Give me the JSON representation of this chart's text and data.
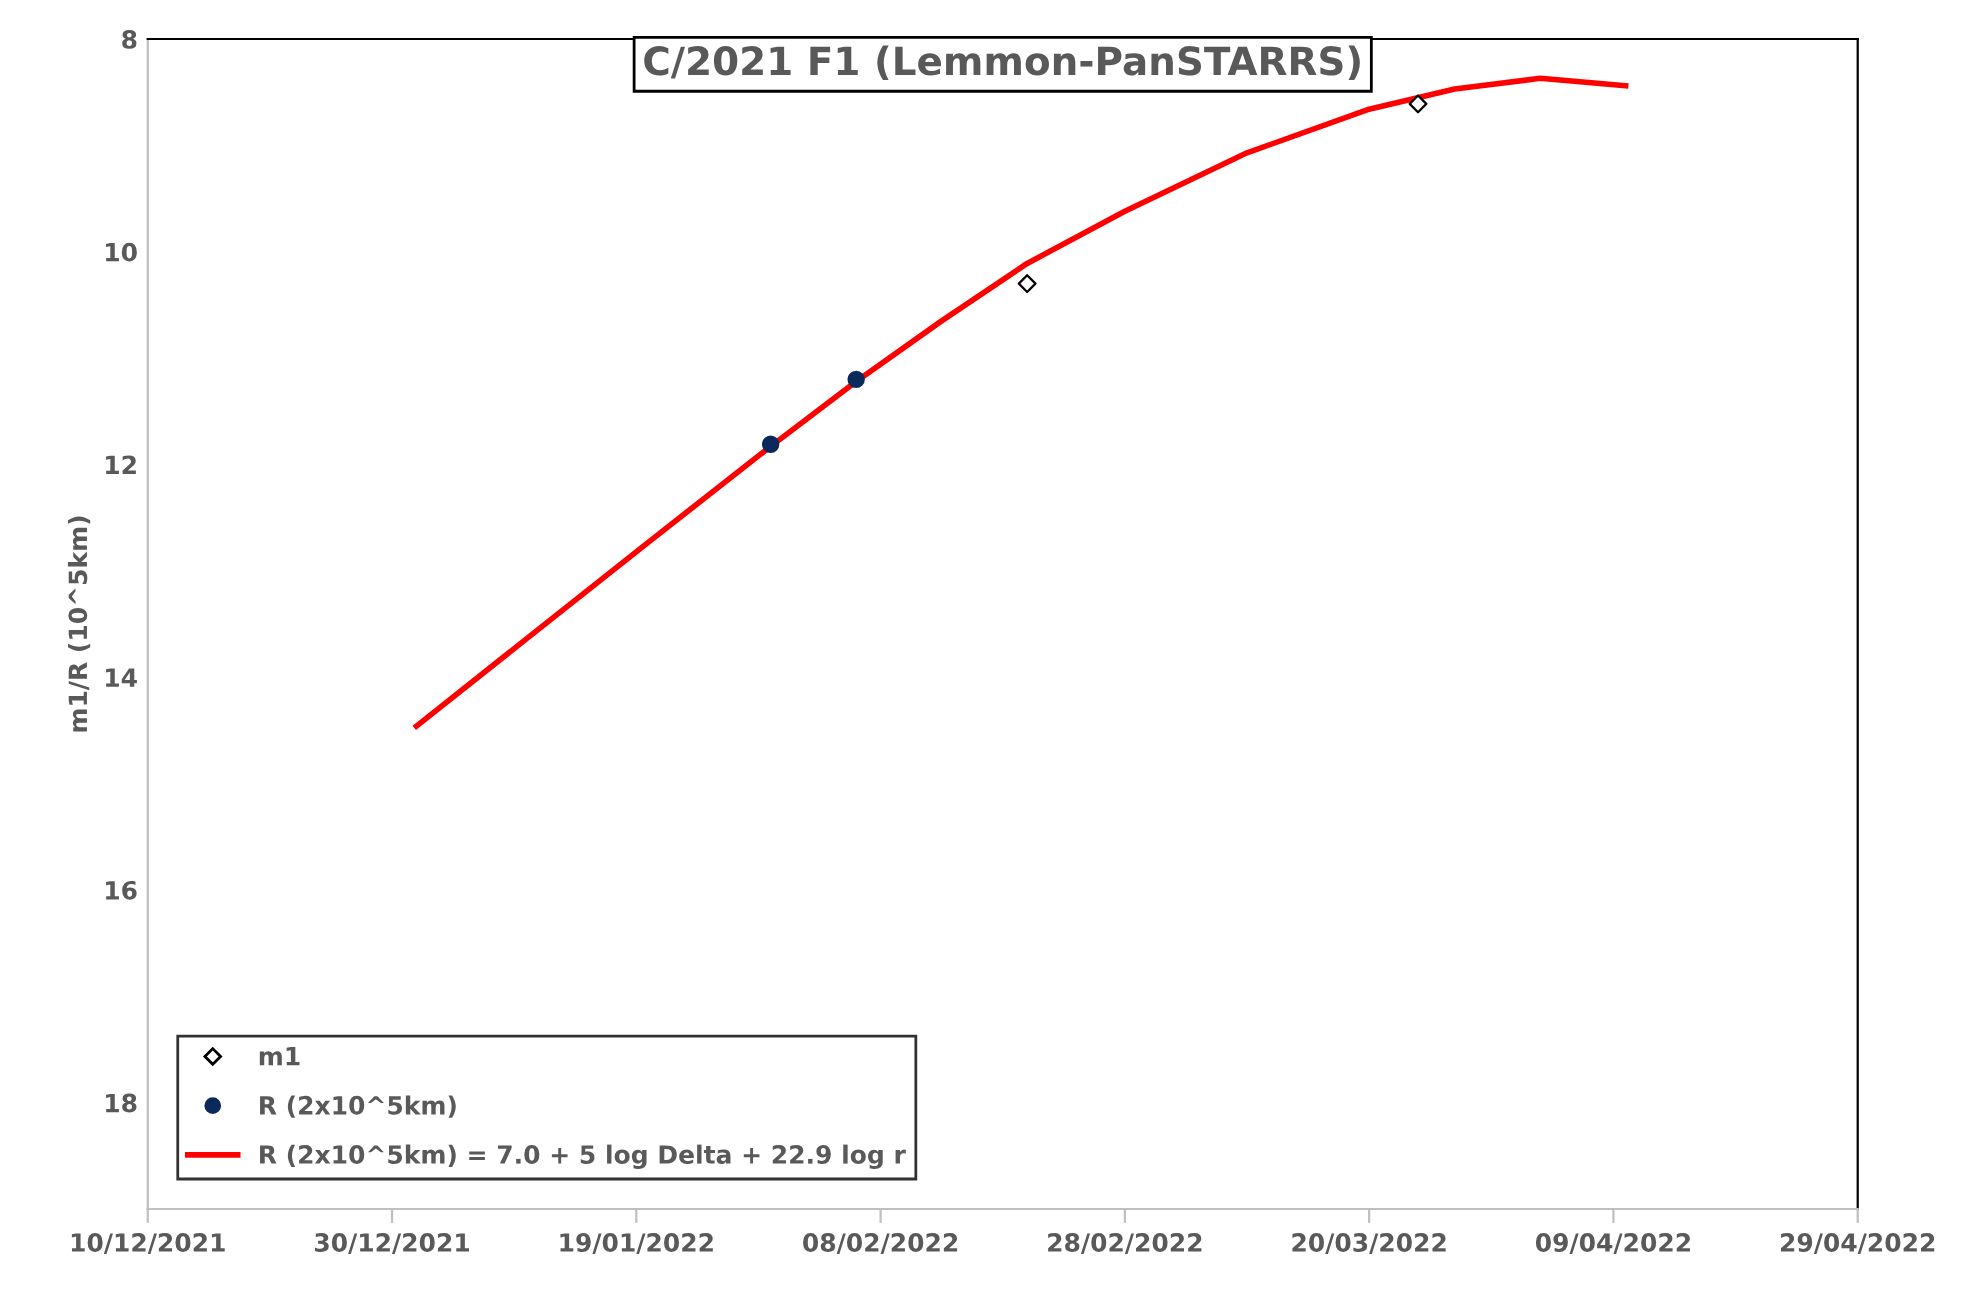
{
  "chart_data": {
    "type": "scatter",
    "title": "C/2021 F1 (Lemmon-PanSTARRS)",
    "ylabel": "m1/R (10^5km)",
    "xlim": [
      "2021-12-10",
      "2022-04-29"
    ],
    "xticks": [
      {
        "value": "2021-12-10",
        "label": "10/12/2021"
      },
      {
        "value": "2021-12-30",
        "label": "30/12/2021"
      },
      {
        "value": "2022-01-19",
        "label": "19/01/2022"
      },
      {
        "value": "2022-02-08",
        "label": "08/02/2022"
      },
      {
        "value": "2022-02-28",
        "label": "28/02/2022"
      },
      {
        "value": "2022-03-20",
        "label": "20/03/2022"
      },
      {
        "value": "2022-04-09",
        "label": "09/04/2022"
      },
      {
        "value": "2022-04-29",
        "label": "29/04/2022"
      }
    ],
    "ylim": [
      19,
      8
    ],
    "yticks": [
      8,
      10,
      12,
      14,
      16,
      18
    ],
    "grid": false,
    "legend": "bottom left",
    "series": [
      {
        "name": "m1",
        "marker": "diamond",
        "color": "#000000",
        "x": [
          "2022-02-20",
          "2022-03-24"
        ],
        "values": [
          10.3,
          8.61
        ]
      },
      {
        "name": "R (2x10^5km)",
        "marker": "circle",
        "color": "#0b2a5b",
        "x": [
          "2022-01-30",
          "2022-02-06"
        ],
        "values": [
          11.81,
          11.2
        ]
      },
      {
        "name": "R (2x10^5km) = 7.0 + 5 log Delta + 22.9 log r",
        "type": "line",
        "marker": "none",
        "line_style": "solid",
        "color": "#ff0000",
        "x": [
          "2022-01-01",
          "2022-01-10",
          "2022-01-20",
          "2022-01-30",
          "2022-02-06",
          "2022-02-13",
          "2022-02-20",
          "2022-02-28",
          "2022-03-10",
          "2022-03-20",
          "2022-03-27",
          "2022-04-03",
          "2022-04-10"
        ],
        "values": [
          14.46,
          13.64,
          12.73,
          11.83,
          11.22,
          10.65,
          10.11,
          9.62,
          9.07,
          8.66,
          8.47,
          8.37,
          8.44
        ]
      }
    ]
  }
}
